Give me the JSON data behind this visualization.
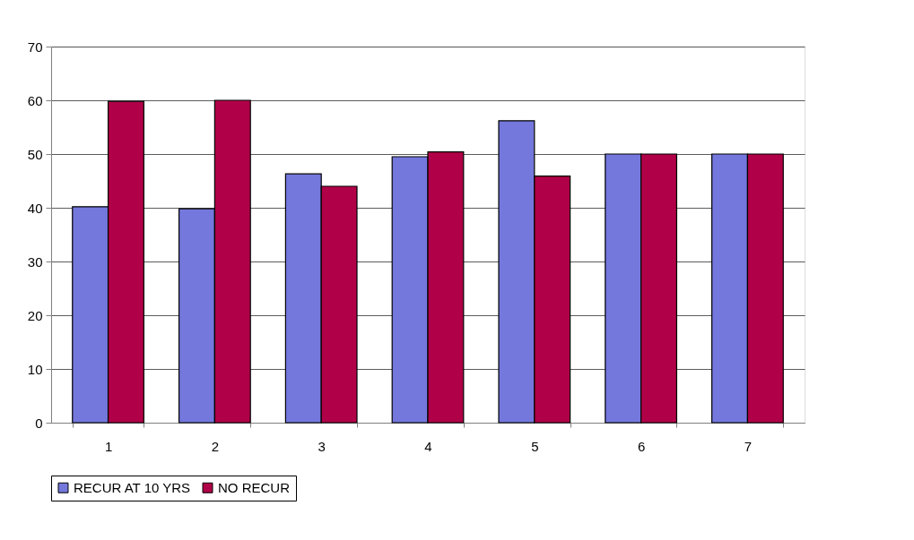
{
  "chart_data": {
    "type": "bar",
    "categories": [
      "1",
      "2",
      "3",
      "4",
      "5",
      "6",
      "7"
    ],
    "series": [
      {
        "name": "RECUR AT 10 YRS",
        "color": "#7478dc",
        "values": [
          40.2,
          39.8,
          46.3,
          49.5,
          56.2,
          50,
          50
        ]
      },
      {
        "name": "NO RECUR",
        "color": "#b00048",
        "values": [
          59.8,
          60.0,
          44.0,
          50.4,
          45.9,
          50,
          50
        ]
      }
    ],
    "ylim": [
      0,
      70
    ],
    "yticks": [
      0,
      10,
      20,
      30,
      40,
      50,
      60,
      70
    ],
    "grid": "y",
    "legend": "bottom"
  }
}
